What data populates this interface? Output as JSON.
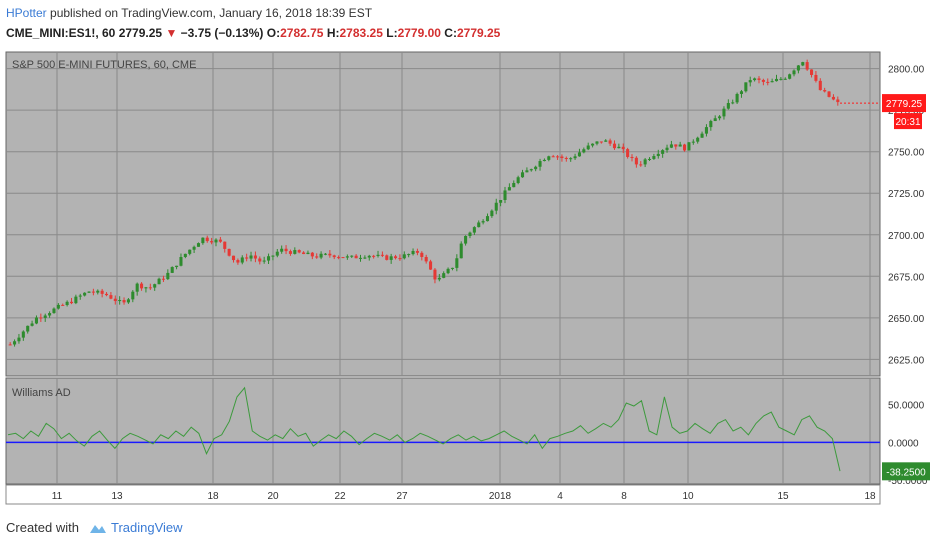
{
  "header": {
    "author": "HPotter",
    "published_text": "published on TradingView.com, January 16, 2018 18:39 EST",
    "symbol": "CME_MINI:ES1!, 60",
    "last": "2779.25",
    "change_arrow": "▼",
    "change": "−3.75 (−0.13%)",
    "o_label": "O:",
    "o_value": "2782.75",
    "h_label": "H:",
    "h_value": "2783.25",
    "l_label": "L:",
    "l_value": "2779.00",
    "c_label": "C:",
    "c_value": "2779.25"
  },
  "footer": {
    "created_with": "Created with",
    "brand": "TradingView"
  },
  "colors": {
    "up": "#2e8b2e",
    "down": "#e53935",
    "pane_bg": "#b3b3b3",
    "zero_line": "#1a1aff",
    "ad_line": "#3d9a3d",
    "price_badge": "#ff1a1a",
    "ad_badge": "#2e8b2e"
  },
  "chart_data": [
    {
      "type": "line",
      "title": "S&P 500 E-MINI FUTURES, 60, CME",
      "ylim": [
        2615,
        2810
      ],
      "y_ticks": [
        "2800.00",
        "2775.00",
        "2750.00",
        "2725.00",
        "2700.00",
        "2675.00",
        "2650.00",
        "2625.00"
      ],
      "last_price_label": "2779.25",
      "countdown_label": "20:31",
      "x_tick_labels": [
        "11",
        "13",
        "18",
        "20",
        "22",
        "27",
        "2018",
        "4",
        "8",
        "10",
        "15",
        "18"
      ],
      "series": [
        {
          "x": [
            0,
            3,
            6,
            10,
            14,
            18,
            22,
            26,
            29,
            32,
            36,
            40,
            44,
            48,
            52,
            55,
            58,
            62,
            66,
            70,
            74,
            78,
            82,
            86,
            90,
            94,
            98,
            102,
            104,
            108,
            112,
            116,
            120,
            124,
            128,
            132,
            136,
            140,
            144,
            148,
            152,
            155,
            158,
            162,
            166,
            170,
            174,
            178,
            182,
            186,
            190,
            194,
            198,
            202,
            206,
            210,
            214,
            218,
            222,
            226,
            228,
            232,
            236,
            240,
            244,
            248,
            252,
            256,
            260
          ],
          "values": [
            2634,
            2642,
            2650,
            2655,
            2660,
            2666,
            2664,
            2658,
            2670,
            2668,
            2676,
            2688,
            2698,
            2696,
            2683,
            2688,
            2683,
            2691,
            2689,
            2687,
            2688,
            2686,
            2688,
            2686,
            2687,
            2690,
            2672,
            2682,
            2698,
            2708,
            2720,
            2733,
            2741,
            2749,
            2745,
            2752,
            2757,
            2752,
            2742,
            2749,
            2755,
            2752,
            2760,
            2770,
            2781,
            2794,
            2791,
            2795,
            2805,
            2787,
            2779,
            2779,
            2779,
            2779,
            2779,
            2779,
            2779,
            2779,
            2779,
            2779,
            2779,
            2779,
            2779,
            2779,
            2779,
            2779,
            2779,
            2779,
            2779
          ]
        }
      ]
    },
    {
      "type": "line",
      "title": "Williams AD",
      "ylim": [
        -55,
        85
      ],
      "y_ticks": [
        "50.0000",
        "0.0000",
        "-50.0000"
      ],
      "last_value_label": "-38.2500",
      "series": [
        {
          "name": "Williams AD",
          "values": [
            10,
            12,
            5,
            15,
            8,
            25,
            18,
            5,
            12,
            2,
            -5,
            8,
            15,
            3,
            -8,
            5,
            12,
            8,
            3,
            -2,
            10,
            5,
            15,
            8,
            20,
            12,
            -15,
            5,
            10,
            28,
            60,
            72,
            15,
            8,
            3,
            10,
            5,
            18,
            8,
            12,
            -5,
            3,
            10,
            5,
            15,
            8,
            -3,
            5,
            12,
            8,
            3,
            10,
            0,
            5,
            12,
            8,
            3,
            -2,
            5,
            10,
            3,
            8,
            2,
            5,
            10,
            15,
            8,
            3,
            -2,
            10,
            -8,
            5,
            8,
            12,
            15,
            22,
            12,
            18,
            25,
            20,
            30,
            52,
            48,
            55,
            15,
            10,
            60,
            20,
            12,
            15,
            25,
            18,
            12,
            25,
            30,
            15,
            20,
            10,
            25,
            35,
            40,
            20,
            15,
            10,
            30,
            35,
            20,
            15,
            5,
            -38
          ]
        }
      ]
    }
  ]
}
